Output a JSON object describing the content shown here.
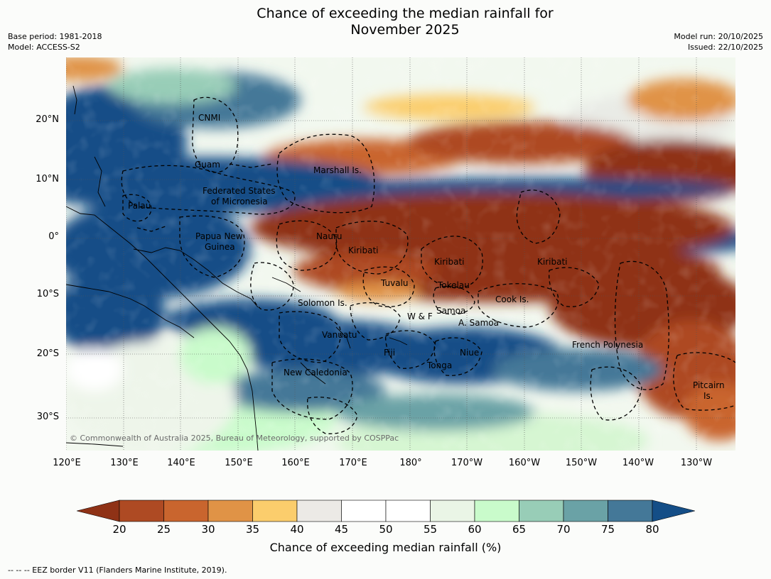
{
  "title_line1": "Chance of exceeding the median rainfall for",
  "title_line2": "November 2025",
  "meta_left": {
    "base_period": "Base period: 1981-2018",
    "model": "Model: ACCESS-S2"
  },
  "meta_right": {
    "model_run": "Model run: 20/10/2025",
    "issued": "Issued: 22/10/2025"
  },
  "copyright": "© Commonwealth of Australia 2025, Bureau of Meteorology, supported by COSPPac",
  "lat_labels": [
    "20°N",
    "10°N",
    "0°",
    "10°S",
    "20°S",
    "30°S"
  ],
  "lon_labels": [
    "120°E",
    "130°E",
    "140°E",
    "150°E",
    "160°E",
    "170°E",
    "180°",
    "170°W",
    "160°W",
    "150°W",
    "140°W",
    "130°W"
  ],
  "regions": {
    "cnmi": "CNMI",
    "guam": "Guam",
    "marshall": "Marshall Is.",
    "fsm_1": "Federated States",
    "fsm_2": "of Micronesia",
    "palau": "Palau",
    "png_1": "Papua New",
    "png_2": "Guinea",
    "nauru": "Nauru",
    "kiribati_w": "Kiribati",
    "kiribati_c": "Kiribati",
    "kiribati_e": "Kiribati",
    "tuvalu": "Tuvalu",
    "tokelau": "Tokelau",
    "cook": "Cook Is.",
    "solomon": "Solomon Is.",
    "wf": "W & F",
    "samoa": "Samoa",
    "asamoa": "A. Samoa",
    "vanuatu": "Vanuatu",
    "fiji": "Fiji",
    "niue": "Niue",
    "tonga": "Tonga",
    "french_polynesia": "French Polynesia",
    "new_caledonia": "New Caledonia",
    "pitcairn_1": "Pitcairn",
    "pitcairn_2": "Is."
  },
  "colorbar": {
    "ticks": [
      "20",
      "25",
      "30",
      "35",
      "40",
      "45",
      "50",
      "55",
      "60",
      "65",
      "70",
      "75",
      "80"
    ],
    "label": "Chance of exceeding median rainfall (%)",
    "colors": [
      "#8f3216",
      "#ae4a23",
      "#c9652e",
      "#e09346",
      "#fbcd6c",
      "#eceae6",
      "#ffffff",
      "#ffffff",
      "#eaf5e6",
      "#c9fbcb",
      "#98cdb7",
      "#6aa2a6",
      "#447898",
      "#144e87"
    ]
  },
  "footnote": "--  --  -- EEZ border V11 (Flanders Marine Institute, 2019)."
}
